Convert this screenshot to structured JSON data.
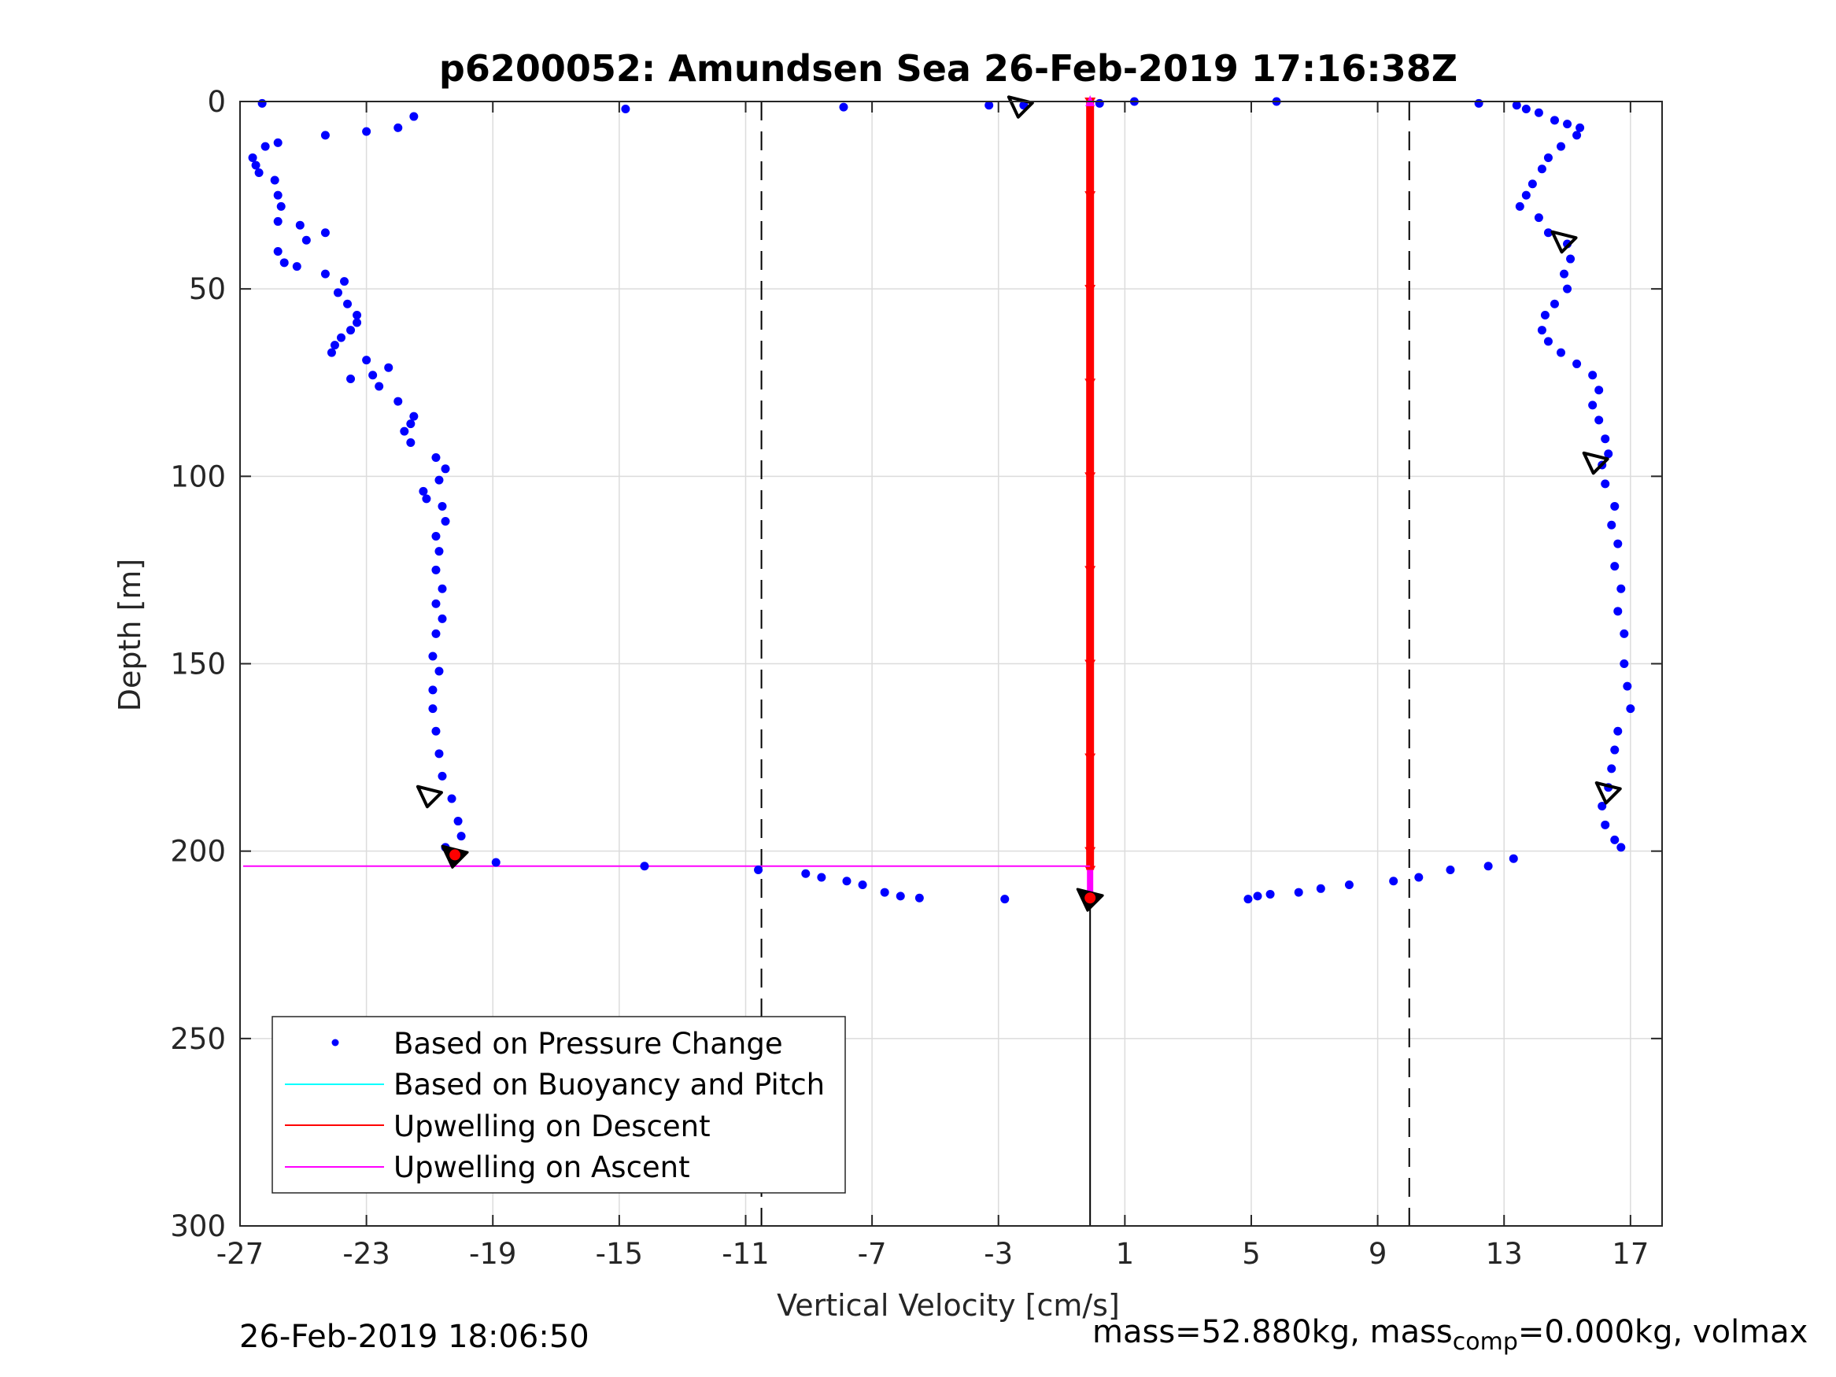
{
  "chart_data": {
    "type": "scatter",
    "title": "p6200052: Amundsen Sea 26-Feb-2019 17:16:38Z",
    "xlabel": "Vertical Velocity [cm/s]",
    "ylabel": "Depth [m]",
    "xlim": [
      -27,
      18
    ],
    "ylim": [
      0,
      300
    ],
    "y_reversed": true,
    "grid": true,
    "legend_position": "bottom-left",
    "x_ticks": [
      -27,
      -23,
      -19,
      -15,
      -11,
      -7,
      -3,
      1,
      5,
      9,
      13,
      17
    ],
    "x_tick_labels": [
      "-27",
      "-23",
      "-19",
      "-15",
      "-11",
      "-7",
      "-3",
      "1",
      "5",
      "9",
      "13",
      "17"
    ],
    "y_ticks": [
      0,
      50,
      100,
      150,
      200,
      250,
      300
    ],
    "y_tick_labels": [
      "0",
      "50",
      "100",
      "150",
      "200",
      "250",
      "300"
    ],
    "reference_lines": {
      "dashed_x": [
        -10.5,
        10
      ],
      "solid_x_segment": {
        "x": -0.1,
        "y": [
          212,
          300
        ]
      }
    },
    "series": [
      {
        "name": "Based on Pressure Change",
        "marker": "dot",
        "color": "#0000ff",
        "descent_profile": [
          [
            -26.3,
            0.5
          ],
          [
            -14.8,
            2
          ],
          [
            -21.5,
            4
          ],
          [
            -22,
            7
          ],
          [
            -23,
            8
          ],
          [
            -24.3,
            9
          ],
          [
            -25.8,
            11
          ],
          [
            -26.2,
            12
          ],
          [
            -26.6,
            15
          ],
          [
            -26.5,
            17
          ],
          [
            -26.4,
            19
          ],
          [
            -25.9,
            21
          ],
          [
            -25.8,
            25
          ],
          [
            -25.7,
            28
          ],
          [
            -25.8,
            32
          ],
          [
            -25.1,
            33
          ],
          [
            -24.3,
            35
          ],
          [
            -24.9,
            37
          ],
          [
            -25.8,
            40
          ],
          [
            -25.6,
            43
          ],
          [
            -25.2,
            44
          ],
          [
            -24.3,
            46
          ],
          [
            -23.7,
            48
          ],
          [
            -23.9,
            51
          ],
          [
            -23.6,
            54
          ],
          [
            -23.3,
            57
          ],
          [
            -23.3,
            59
          ],
          [
            -23.5,
            61
          ],
          [
            -23.8,
            63
          ],
          [
            -24,
            65
          ],
          [
            -24.1,
            67
          ],
          [
            -23,
            69
          ],
          [
            -22.3,
            71
          ],
          [
            -22.8,
            73
          ],
          [
            -23.5,
            74
          ],
          [
            -22.6,
            76
          ],
          [
            -22,
            80
          ],
          [
            -21.5,
            84
          ],
          [
            -21.6,
            86
          ],
          [
            -21.8,
            88
          ],
          [
            -21.6,
            91
          ],
          [
            -20.8,
            95
          ],
          [
            -20.5,
            98
          ],
          [
            -20.7,
            101
          ],
          [
            -21.2,
            104
          ],
          [
            -21.1,
            106
          ],
          [
            -20.6,
            108
          ],
          [
            -20.5,
            112
          ],
          [
            -20.8,
            116
          ],
          [
            -20.7,
            120
          ],
          [
            -20.8,
            125
          ],
          [
            -20.6,
            130
          ],
          [
            -20.8,
            134
          ],
          [
            -20.6,
            138
          ],
          [
            -20.8,
            142
          ],
          [
            -20.9,
            148
          ],
          [
            -20.7,
            152
          ],
          [
            -20.9,
            157
          ],
          [
            -20.9,
            162
          ],
          [
            -20.8,
            168
          ],
          [
            -20.7,
            174
          ],
          [
            -20.6,
            180
          ],
          [
            -20.3,
            186
          ],
          [
            -20.1,
            192
          ],
          [
            -20,
            196
          ],
          [
            -20.5,
            199
          ],
          [
            -18.9,
            203
          ],
          [
            -14.2,
            204
          ],
          [
            -10.6,
            205
          ],
          [
            -9.1,
            206
          ],
          [
            -8.6,
            207
          ],
          [
            -7.8,
            208
          ],
          [
            -7.3,
            209
          ],
          [
            -6.6,
            211
          ],
          [
            -6.1,
            212
          ],
          [
            -5.5,
            212.5
          ],
          [
            -2.8,
            212.8
          ]
        ],
        "ascent_profile": [
          [
            -3.3,
            1
          ],
          [
            -2.2,
            1
          ],
          [
            -7.9,
            1.5
          ],
          [
            0.2,
            0.5
          ],
          [
            1.3,
            0
          ],
          [
            5.8,
            0
          ],
          [
            12.2,
            0.5
          ],
          [
            13.4,
            1
          ],
          [
            13.7,
            2
          ],
          [
            14.1,
            3
          ],
          [
            14.6,
            5
          ],
          [
            15,
            6
          ],
          [
            15.4,
            7
          ],
          [
            15.3,
            9
          ],
          [
            14.8,
            12
          ],
          [
            14.4,
            15
          ],
          [
            14.2,
            18
          ],
          [
            13.9,
            22
          ],
          [
            13.7,
            25
          ],
          [
            13.5,
            28
          ],
          [
            14.1,
            31
          ],
          [
            14.4,
            35
          ],
          [
            15,
            38
          ],
          [
            15.1,
            42
          ],
          [
            14.9,
            46
          ],
          [
            15,
            50
          ],
          [
            14.6,
            54
          ],
          [
            14.3,
            57
          ],
          [
            14.2,
            61
          ],
          [
            14.4,
            64
          ],
          [
            14.8,
            67
          ],
          [
            15.3,
            70
          ],
          [
            15.8,
            73
          ],
          [
            16,
            77
          ],
          [
            15.8,
            81
          ],
          [
            16,
            85
          ],
          [
            16.2,
            90
          ],
          [
            16.3,
            94
          ],
          [
            16.1,
            97
          ],
          [
            16.2,
            102
          ],
          [
            16.5,
            108
          ],
          [
            16.4,
            113
          ],
          [
            16.6,
            118
          ],
          [
            16.5,
            124
          ],
          [
            16.7,
            130
          ],
          [
            16.6,
            136
          ],
          [
            16.8,
            142
          ],
          [
            16.8,
            150
          ],
          [
            16.9,
            156
          ],
          [
            17,
            162
          ],
          [
            16.6,
            168
          ],
          [
            16.5,
            173
          ],
          [
            16.4,
            178
          ],
          [
            16.3,
            183
          ],
          [
            16.1,
            188
          ],
          [
            16.2,
            193
          ],
          [
            16.5,
            197
          ],
          [
            16.7,
            199
          ],
          [
            13.3,
            202
          ],
          [
            12.5,
            204
          ],
          [
            11.3,
            205
          ],
          [
            10.3,
            207
          ],
          [
            9.5,
            208
          ],
          [
            8.1,
            209
          ],
          [
            7.2,
            210
          ],
          [
            6.5,
            211
          ],
          [
            5.6,
            211.5
          ],
          [
            5.2,
            212
          ],
          [
            4.9,
            212.8
          ]
        ]
      },
      {
        "name": "Based on Buoyancy and Pitch",
        "color": "#00ffff"
      },
      {
        "name": "Upwelling on Descent",
        "color": "#ff0000",
        "points": [
          [
            -0.1,
            0
          ],
          [
            -0.1,
            25
          ],
          [
            -0.1,
            50
          ],
          [
            -0.1,
            75
          ],
          [
            -0.1,
            100
          ],
          [
            -0.1,
            125
          ],
          [
            -0.1,
            150
          ],
          [
            -0.1,
            175
          ],
          [
            -0.1,
            200
          ],
          [
            -0.1,
            205
          ]
        ]
      },
      {
        "name": "Upwelling on Ascent",
        "color": "#ff00ff",
        "points": [
          [
            -26.9,
            0
          ],
          [
            -0.1,
            0
          ],
          [
            -0.1,
            204
          ],
          [
            -26.9,
            204
          ],
          [
            -0.1,
            205
          ],
          [
            -0.1,
            212
          ]
        ]
      }
    ],
    "markers": {
      "open_triangles": [
        [
          -2.3,
          1
        ],
        [
          -21,
          185
        ],
        [
          14.9,
          37
        ],
        [
          15.9,
          96
        ],
        [
          16.3,
          184
        ]
      ],
      "filled_black": [
        [
          -0.1,
          212.5
        ],
        [
          -20.2,
          201
        ]
      ],
      "filled_red": [
        [
          -0.1,
          212.5
        ],
        [
          -20.2,
          201
        ]
      ]
    }
  },
  "footer": {
    "left": "26-Feb-2019 18:06:50",
    "right_part1": "mass=52.880kg, mass",
    "right_sub": "comp",
    "right_part2": "=0.000kg, volmax"
  }
}
